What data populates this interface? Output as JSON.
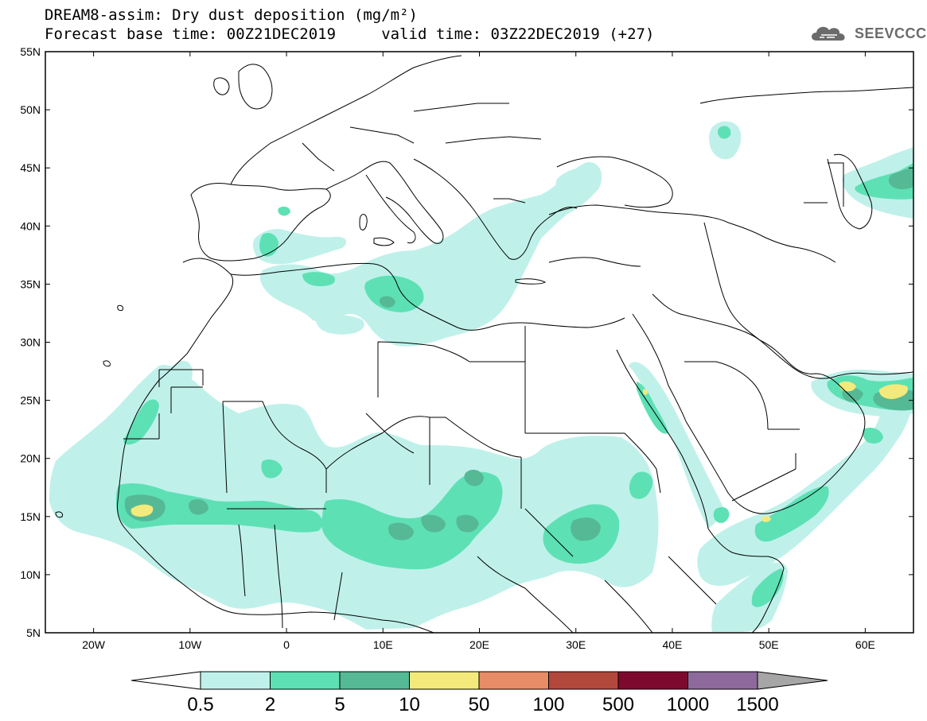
{
  "header": {
    "title_line1": "DREAM8-assim: Dry dust deposition (mg/m²)",
    "title_line2": "Forecast base time: 00Z21DEC2019     valid time: 03Z22DEC2019 (+27)",
    "logo_text": "SEEVCCC"
  },
  "map": {
    "lon_range": [
      -25,
      65
    ],
    "lat_range": [
      5,
      55
    ],
    "lat_ticks": [
      "55N",
      "50N",
      "45N",
      "40N",
      "35N",
      "30N",
      "25N",
      "20N",
      "15N",
      "10N",
      "5N"
    ],
    "lon_ticks": [
      "20W",
      "10W",
      "0",
      "10E",
      "20E",
      "30E",
      "40E",
      "50E",
      "60E"
    ],
    "frame_color": "#000000",
    "coast_color": "#000000"
  },
  "colorbar": {
    "levels": [
      "0.5",
      "2",
      "5",
      "10",
      "50",
      "100",
      "500",
      "1000",
      "1500"
    ],
    "colors": [
      "#bff1ea",
      "#5ee0b5",
      "#55b995",
      "#f4ea7b",
      "#e88b67",
      "#b2483b",
      "#7d0a2e",
      "#8d6a9b",
      "#a6a6a6"
    ],
    "under_color": "#ffffff",
    "over_color": "#a6a6a6"
  }
}
